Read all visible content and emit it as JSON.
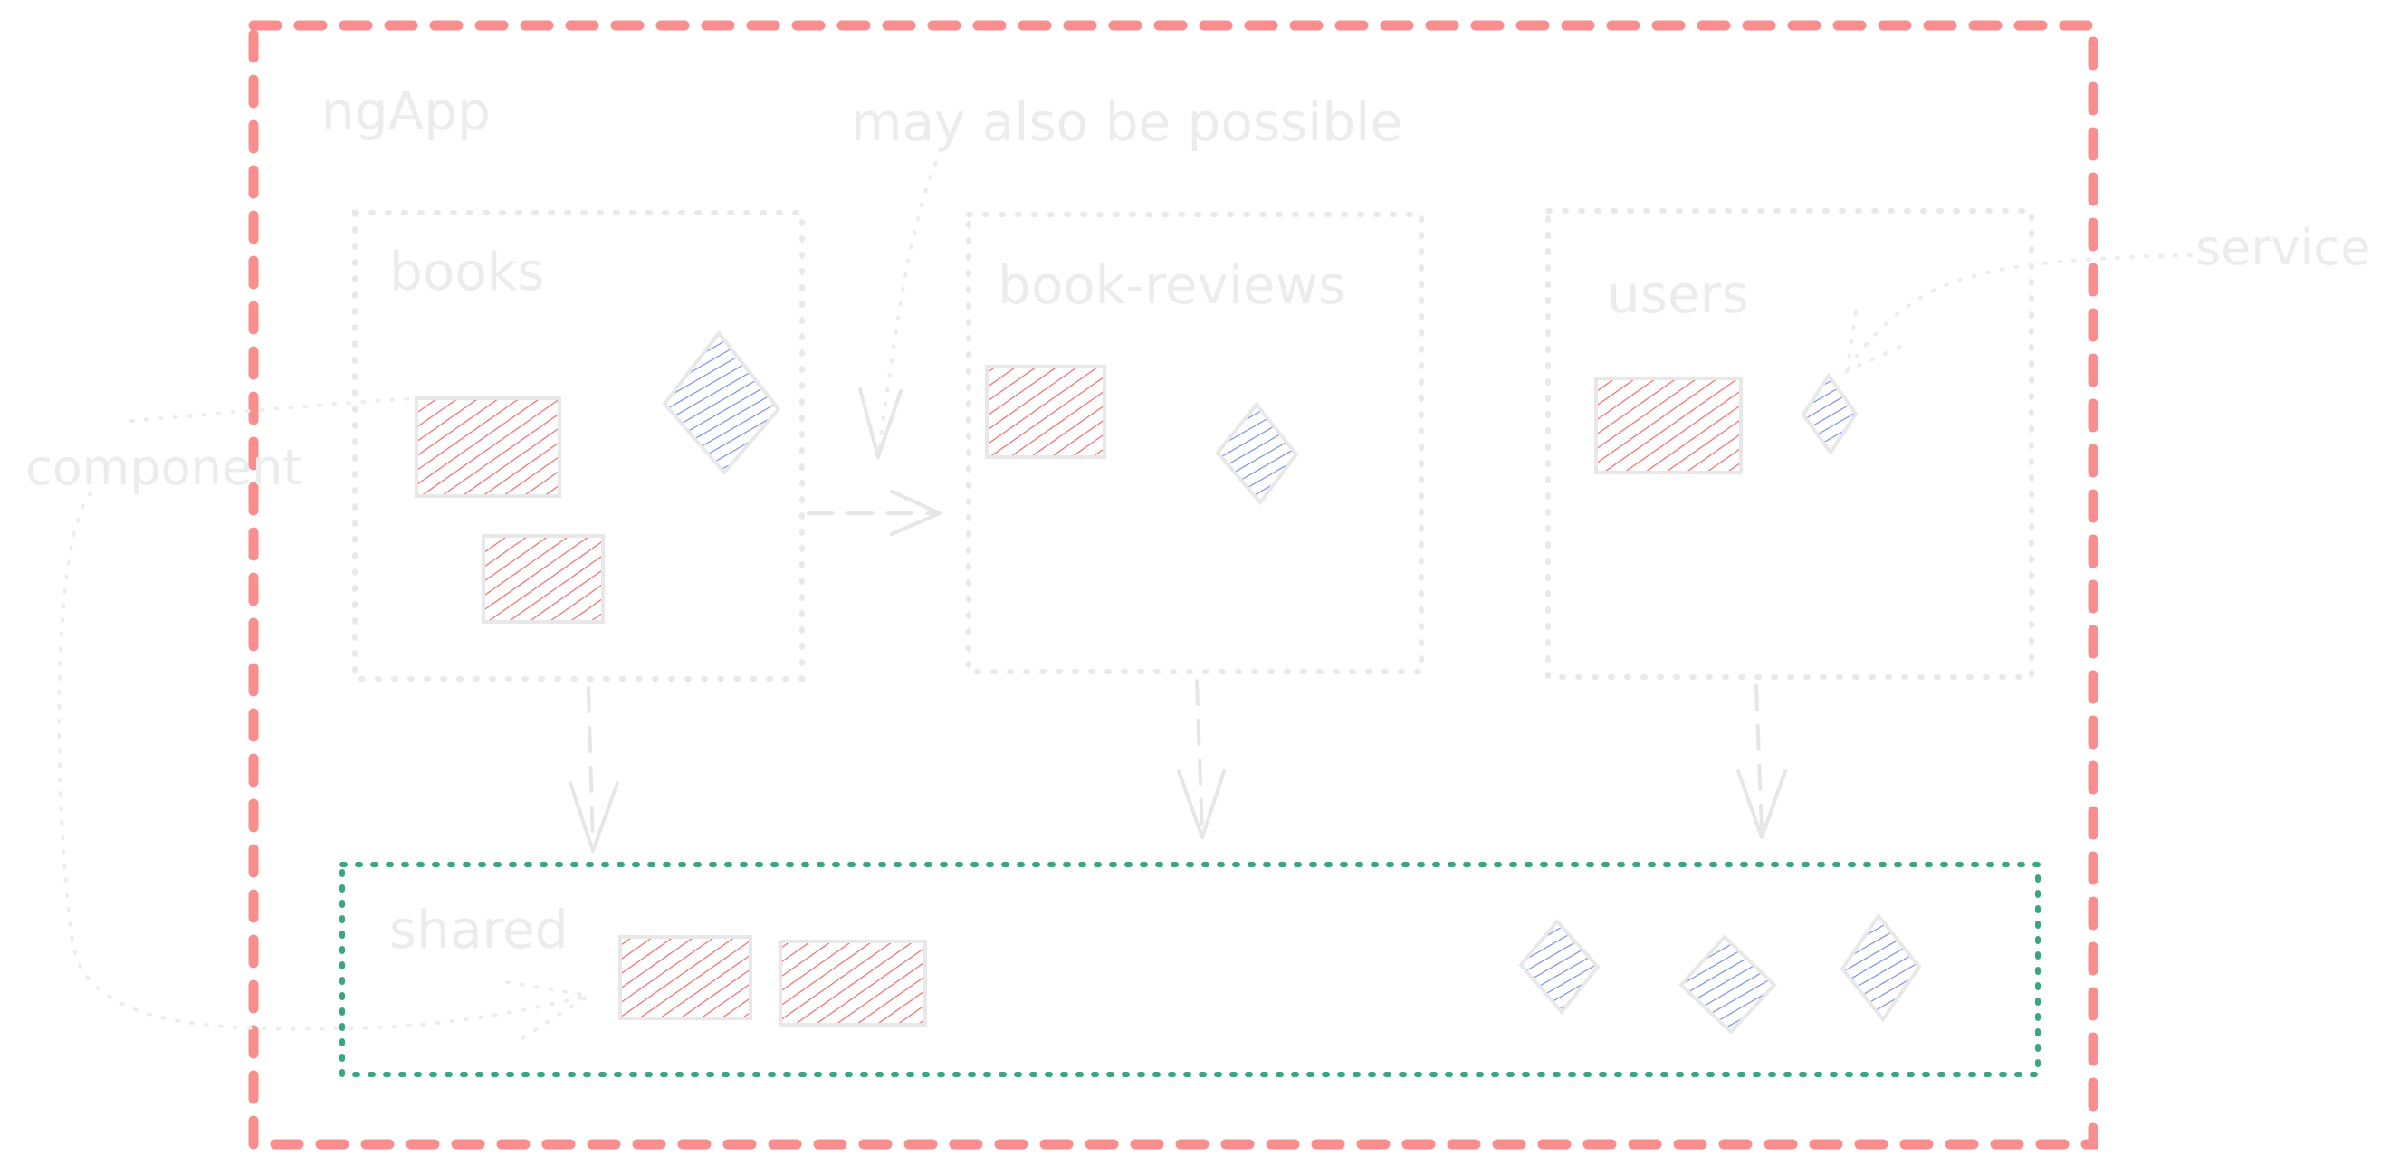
{
  "app": {
    "label": "ngApp"
  },
  "annotations": {
    "may_also_be_possible": "may also be possible",
    "component": "component",
    "service": "service"
  },
  "modules": {
    "books": {
      "label": "books"
    },
    "book_reviews": {
      "label": "book-reviews"
    },
    "users": {
      "label": "users"
    },
    "shared": {
      "label": "shared"
    }
  },
  "colors": {
    "app_border": "#fa8e8e",
    "shared_border": "#3ba57f",
    "component_hatch": "#f06a6a",
    "service_hatch": "#6f86e8",
    "sketch_gray": "#e8e8e8"
  }
}
